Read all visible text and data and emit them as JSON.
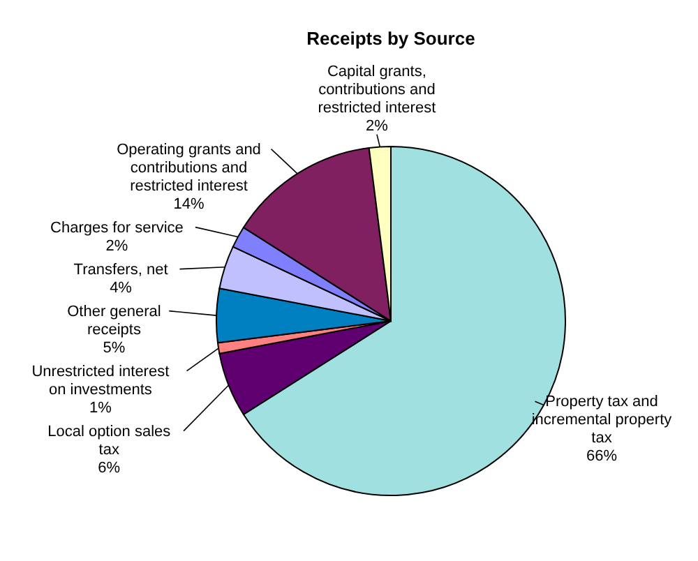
{
  "chart_data": {
    "type": "pie",
    "title": "Receipts by Source",
    "categories": [
      "Property tax and incremental property tax",
      "Local option sales tax",
      "Unrestricted interest on investments",
      "Other general receipts",
      "Transfers, net",
      "Charges for service",
      "Operating grants and contributions and restricted interest",
      "Capital grants, contributions and restricted interest"
    ],
    "values": [
      66,
      6,
      1,
      5,
      4,
      2,
      14,
      2
    ],
    "colors": [
      "#a0e0e0",
      "#600070",
      "#ff8080",
      "#0080c0",
      "#c0c0ff",
      "#8080ff",
      "#802060",
      "#ffffc0"
    ],
    "value_labels": [
      "66%",
      "6%",
      "1%",
      "5%",
      "4%",
      "2%",
      "14%",
      "2%"
    ]
  }
}
